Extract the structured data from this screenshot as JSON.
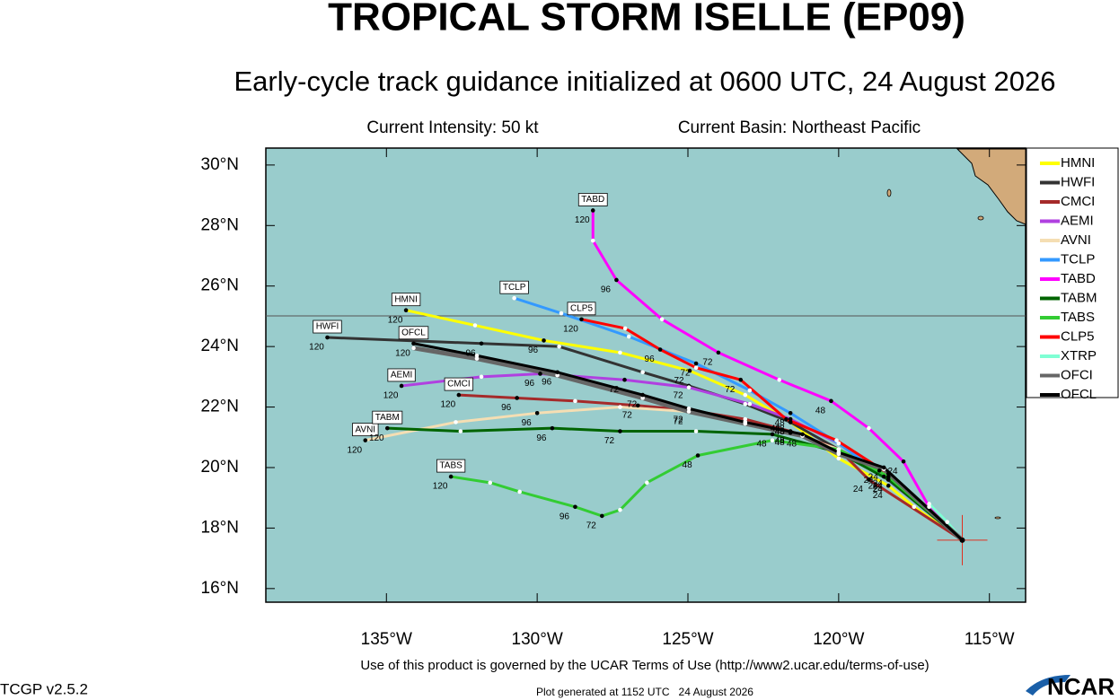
{
  "title": "TROPICAL STORM ISELLE (EP09)",
  "subtitle": "Early-cycle track guidance initialized at 0600 UTC, 24 August 2026",
  "info": {
    "intensity": "Current Intensity: 50 kt",
    "basin": "Current Basin: Northeast Pacific"
  },
  "footer": {
    "terms": "Use of this product is governed by the UCAR Terms of Use (http://www2.ucar.edu/terms-of-use)",
    "version": "TCGP v2.5.2",
    "generated": "Plot generated at 1152 UTC   24 August 2026",
    "logo": "NCAR"
  },
  "chart_data": {
    "type": "track",
    "xlim": [
      -139,
      -113.8
    ],
    "ylim": [
      15.55,
      30.56
    ],
    "xticks": [
      {
        "value": -135,
        "label": "135°W"
      },
      {
        "value": -130,
        "label": "130°W"
      },
      {
        "value": -125,
        "label": "125°W"
      },
      {
        "value": -120,
        "label": "120°W"
      },
      {
        "value": -115,
        "label": "115°W"
      }
    ],
    "yticks": [
      {
        "value": 16,
        "label": "16°N"
      },
      {
        "value": 18,
        "label": "18°N"
      },
      {
        "value": 20,
        "label": "20°N"
      },
      {
        "value": 22,
        "label": "22°N"
      },
      {
        "value": 24,
        "label": "24°N"
      },
      {
        "value": 26,
        "label": "26°N"
      },
      {
        "value": 28,
        "label": "28°N"
      },
      {
        "value": 30,
        "label": "30°N"
      }
    ],
    "initial_position": [
      -115.9,
      17.6
    ],
    "series": [
      {
        "name": "HMNI",
        "color": "#ffff00",
        "x": [
          -134.35,
          -132.06,
          -129.78,
          -127.25,
          -124.94,
          -123.1,
          -121.6,
          -120.0,
          -118.35,
          -117.5,
          -115.9
        ],
        "y": [
          25.2,
          24.7,
          24.2,
          23.8,
          23.2,
          22.4,
          21.5,
          20.3,
          19.4,
          18.7,
          17.6
        ],
        "hours": [
          120,
          null,
          96,
          null,
          72,
          null,
          48,
          null,
          24,
          null,
          null
        ]
      },
      {
        "name": "HWFI",
        "color": "#333333",
        "x": [
          -136.96,
          -131.85,
          -129.27,
          -126.5,
          -124.97,
          -123.1,
          -121.6,
          -120.0,
          -118.65,
          -115.9
        ],
        "y": [
          24.3,
          24.1,
          24.0,
          23.15,
          22.7,
          22.1,
          21.5,
          20.6,
          19.9,
          17.6
        ],
        "hours": [
          120,
          96,
          null,
          null,
          72,
          null,
          48,
          null,
          24,
          null
        ]
      },
      {
        "name": "CMCI",
        "color": "#a52a2a",
        "x": [
          -132.6,
          -130.67,
          -128.74,
          -126.66,
          -124.97,
          -123.1,
          -121.6,
          -120.0,
          -119.0,
          -115.9
        ],
        "y": [
          22.4,
          22.3,
          22.2,
          22.05,
          21.9,
          21.6,
          21.2,
          20.6,
          19.6,
          17.6
        ],
        "hours": [
          120,
          96,
          null,
          72,
          72,
          null,
          48,
          null,
          24,
          null
        ]
      },
      {
        "name": "AEMI",
        "color": "#b040e0",
        "x": [
          -134.5,
          -131.85,
          -129.9,
          -127.1,
          -124.97,
          -122.95,
          -121.6,
          -120.0,
          -118.5,
          -115.9
        ],
        "y": [
          22.7,
          23.0,
          23.1,
          22.9,
          22.65,
          22.1,
          21.6,
          20.8,
          19.7,
          17.6
        ],
        "hours": [
          120,
          null,
          96,
          72,
          null,
          null,
          48,
          null,
          24,
          null
        ]
      },
      {
        "name": "AVNI",
        "color": "#f5deb3",
        "x": [
          -135.7,
          -132.7,
          -130.0,
          -127.25,
          -124.97,
          -123.1,
          -121.6,
          -120.0,
          -118.35,
          -115.9
        ],
        "y": [
          20.9,
          21.5,
          21.8,
          22.0,
          21.85,
          21.5,
          21.15,
          20.6,
          19.7,
          17.6
        ],
        "hours": [
          120,
          null,
          96,
          null,
          72,
          null,
          48,
          null,
          24,
          null
        ]
      },
      {
        "name": "TCLP",
        "color": "#3399ff",
        "x": [
          -130.76,
          -129.2,
          -126.96,
          -124.73,
          -122.95,
          -121.6,
          -120.0,
          -118.35,
          -115.9
        ],
        "y": [
          25.6,
          25.1,
          24.33,
          23.44,
          22.55,
          21.8,
          20.8,
          19.6,
          17.6
        ],
        "hours": [
          null,
          null,
          null,
          72,
          null,
          48,
          null,
          24,
          null
        ]
      },
      {
        "name": "TABD",
        "color": "#ff00ff",
        "x": [
          -128.15,
          -128.15,
          -127.37,
          -125.86,
          -123.99,
          -121.97,
          -120.25,
          -119.0,
          -117.85,
          -117.0,
          -115.9
        ],
        "y": [
          28.5,
          27.5,
          26.2,
          24.9,
          23.8,
          22.9,
          22.2,
          21.3,
          20.2,
          18.7,
          17.6
        ],
        "hours": [
          120,
          null,
          96,
          null,
          72,
          null,
          48,
          null,
          24,
          null,
          null
        ]
      },
      {
        "name": "TABM",
        "color": "#006400",
        "x": [
          -134.97,
          -132.54,
          -129.5,
          -127.25,
          -124.73,
          -122.2,
          -120.0,
          -118.35,
          -115.9
        ],
        "y": [
          21.3,
          21.2,
          21.3,
          21.2,
          21.2,
          21.1,
          20.5,
          19.6,
          17.6
        ],
        "hours": [
          120,
          null,
          96,
          72,
          null,
          48,
          null,
          24,
          null
        ]
      },
      {
        "name": "TABS",
        "color": "#33cc33",
        "x": [
          -132.86,
          -131.56,
          -130.58,
          -128.74,
          -127.85,
          -127.25,
          -126.36,
          -124.67,
          -122.2,
          -120.0,
          -118.35,
          -115.9
        ],
        "y": [
          19.7,
          19.5,
          19.2,
          18.7,
          18.4,
          18.6,
          19.5,
          20.4,
          20.9,
          20.6,
          19.7,
          17.6
        ],
        "hours": [
          120,
          null,
          null,
          96,
          72,
          null,
          null,
          48,
          null,
          null,
          24,
          null
        ]
      },
      {
        "name": "CLP5",
        "color": "#ff0000",
        "x": [
          -128.53,
          -127.08,
          -125.92,
          -124.73,
          -123.25,
          -121.74,
          -120.07,
          -118.35,
          -115.9
        ],
        "y": [
          24.9,
          24.6,
          23.9,
          23.3,
          22.9,
          21.6,
          20.9,
          19.8,
          17.6
        ],
        "hours": [
          120,
          null,
          96,
          null,
          72,
          48,
          null,
          24,
          null
        ]
      },
      {
        "name": "XTRP",
        "color": "#7fffd4",
        "x": [
          -117.0,
          -116.4,
          -115.9
        ],
        "y": [
          18.8,
          18.2,
          17.6
        ],
        "hours": [
          null,
          null,
          null
        ]
      },
      {
        "name": "OFCI",
        "color": "#666666",
        "x": [
          -134.1,
          -132.0,
          -129.33,
          -126.5,
          -124.97,
          -123.1,
          -121.2,
          -120.0,
          -118.5,
          -115.9
        ],
        "y": [
          23.95,
          23.6,
          23.05,
          22.3,
          21.85,
          21.45,
          21.05,
          20.45,
          19.95,
          17.6
        ],
        "hours": [
          null,
          null,
          null,
          null,
          null,
          null,
          null,
          null,
          null,
          null
        ]
      },
      {
        "name": "OFCL",
        "color": "#000000",
        "x": [
          -134.1,
          -132.0,
          -129.33,
          -126.5,
          -124.97,
          -123.1,
          -121.2,
          -120.0,
          -118.5,
          -115.9
        ],
        "y": [
          24.1,
          23.7,
          23.15,
          22.4,
          21.95,
          21.5,
          21.1,
          20.5,
          20.0,
          17.6
        ],
        "hours": [
          120,
          null,
          96,
          72,
          null,
          null,
          48,
          null,
          24,
          null
        ]
      }
    ]
  }
}
